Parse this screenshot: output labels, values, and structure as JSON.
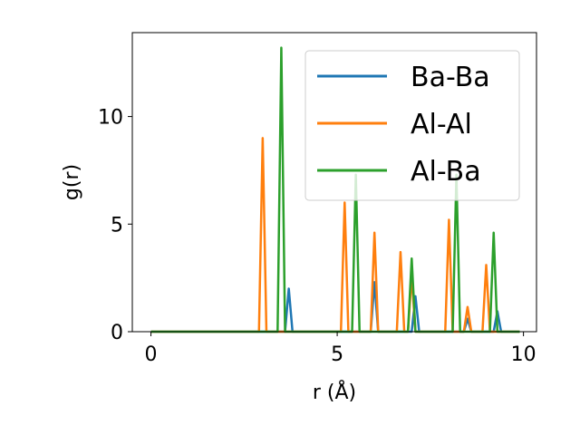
{
  "chart_data": {
    "type": "line",
    "xlabel": "r (Å)",
    "ylabel": "g(r)",
    "xlim": [
      -0.5,
      10.35
    ],
    "ylim": [
      0,
      13.9
    ],
    "x_ticks": [
      0,
      5,
      10
    ],
    "y_ticks": [
      0,
      5,
      10
    ],
    "legend_position": "upper right",
    "grid": false,
    "series": [
      {
        "name": "Ba-Ba",
        "color": "#1f77b4",
        "peaks": [
          [
            3.7,
            2.0
          ],
          [
            6.0,
            2.3
          ],
          [
            7.1,
            1.65
          ],
          [
            8.5,
            0.6
          ],
          [
            9.3,
            0.95
          ]
        ]
      },
      {
        "name": "Al-Al",
        "color": "#ff7f0e",
        "peaks": [
          [
            3.0,
            9.0
          ],
          [
            5.2,
            6.0
          ],
          [
            6.0,
            4.6
          ],
          [
            6.7,
            3.7
          ],
          [
            7.0,
            2.6
          ],
          [
            8.0,
            5.2
          ],
          [
            8.5,
            1.15
          ],
          [
            9.0,
            3.1
          ]
        ]
      },
      {
        "name": "Al-Ba",
        "color": "#2ca02c",
        "peaks": [
          [
            3.5,
            13.2
          ],
          [
            5.5,
            7.3
          ],
          [
            7.0,
            3.4
          ],
          [
            8.2,
            7.3
          ],
          [
            9.2,
            4.6
          ]
        ]
      }
    ],
    "x_range": [
      0,
      9.9
    ],
    "x_step": 0.1
  }
}
